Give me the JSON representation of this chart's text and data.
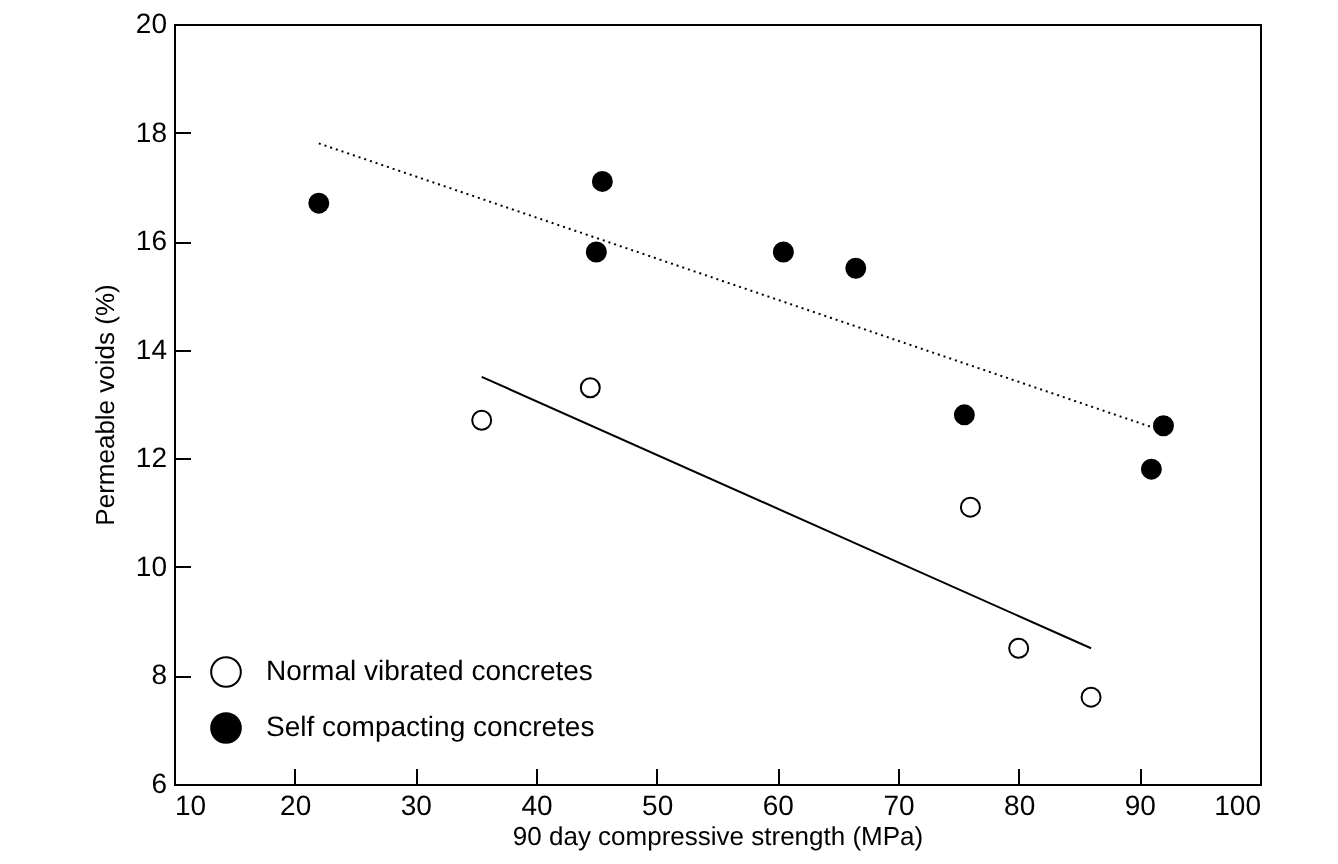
{
  "chart_data": {
    "type": "scatter",
    "xlabel": "90 day compressive strength (MPa)",
    "ylabel": "Permeable voids (%)",
    "xlim": [
      10,
      100
    ],
    "xticks": [
      10,
      20,
      30,
      40,
      50,
      60,
      70,
      80,
      90,
      100
    ],
    "ylim": [
      6,
      20
    ],
    "yticks": [
      6,
      8,
      10,
      12,
      14,
      16,
      18,
      20
    ],
    "grid": false,
    "legend": "bottom left",
    "marker": "circle",
    "series": [
      {
        "name": "Normal vibrated concretes",
        "color": "#ffffff",
        "x": [
          35.5,
          44.5,
          76,
          80,
          86
        ],
        "values": [
          12.7,
          13.3,
          11.1,
          8.5,
          7.6
        ]
      },
      {
        "name": "Self compacting concretes",
        "color": "#000000",
        "x": [
          22,
          45,
          45.5,
          60.5,
          66.5,
          75.5,
          91,
          92
        ],
        "values": [
          16.7,
          15.8,
          17.1,
          15.8,
          15.5,
          12.8,
          11.8,
          12.6
        ]
      },
      {
        "type": "line",
        "color": "#000000",
        "marker": "none",
        "line_style": "solid",
        "x": [
          35.5,
          86
        ],
        "values": [
          13.5,
          8.5
        ]
      },
      {
        "type": "line",
        "color": "#000000",
        "marker": "none",
        "line_style": "dotted",
        "x": [
          22,
          92
        ],
        "values": [
          17.8,
          12.5
        ]
      }
    ]
  }
}
